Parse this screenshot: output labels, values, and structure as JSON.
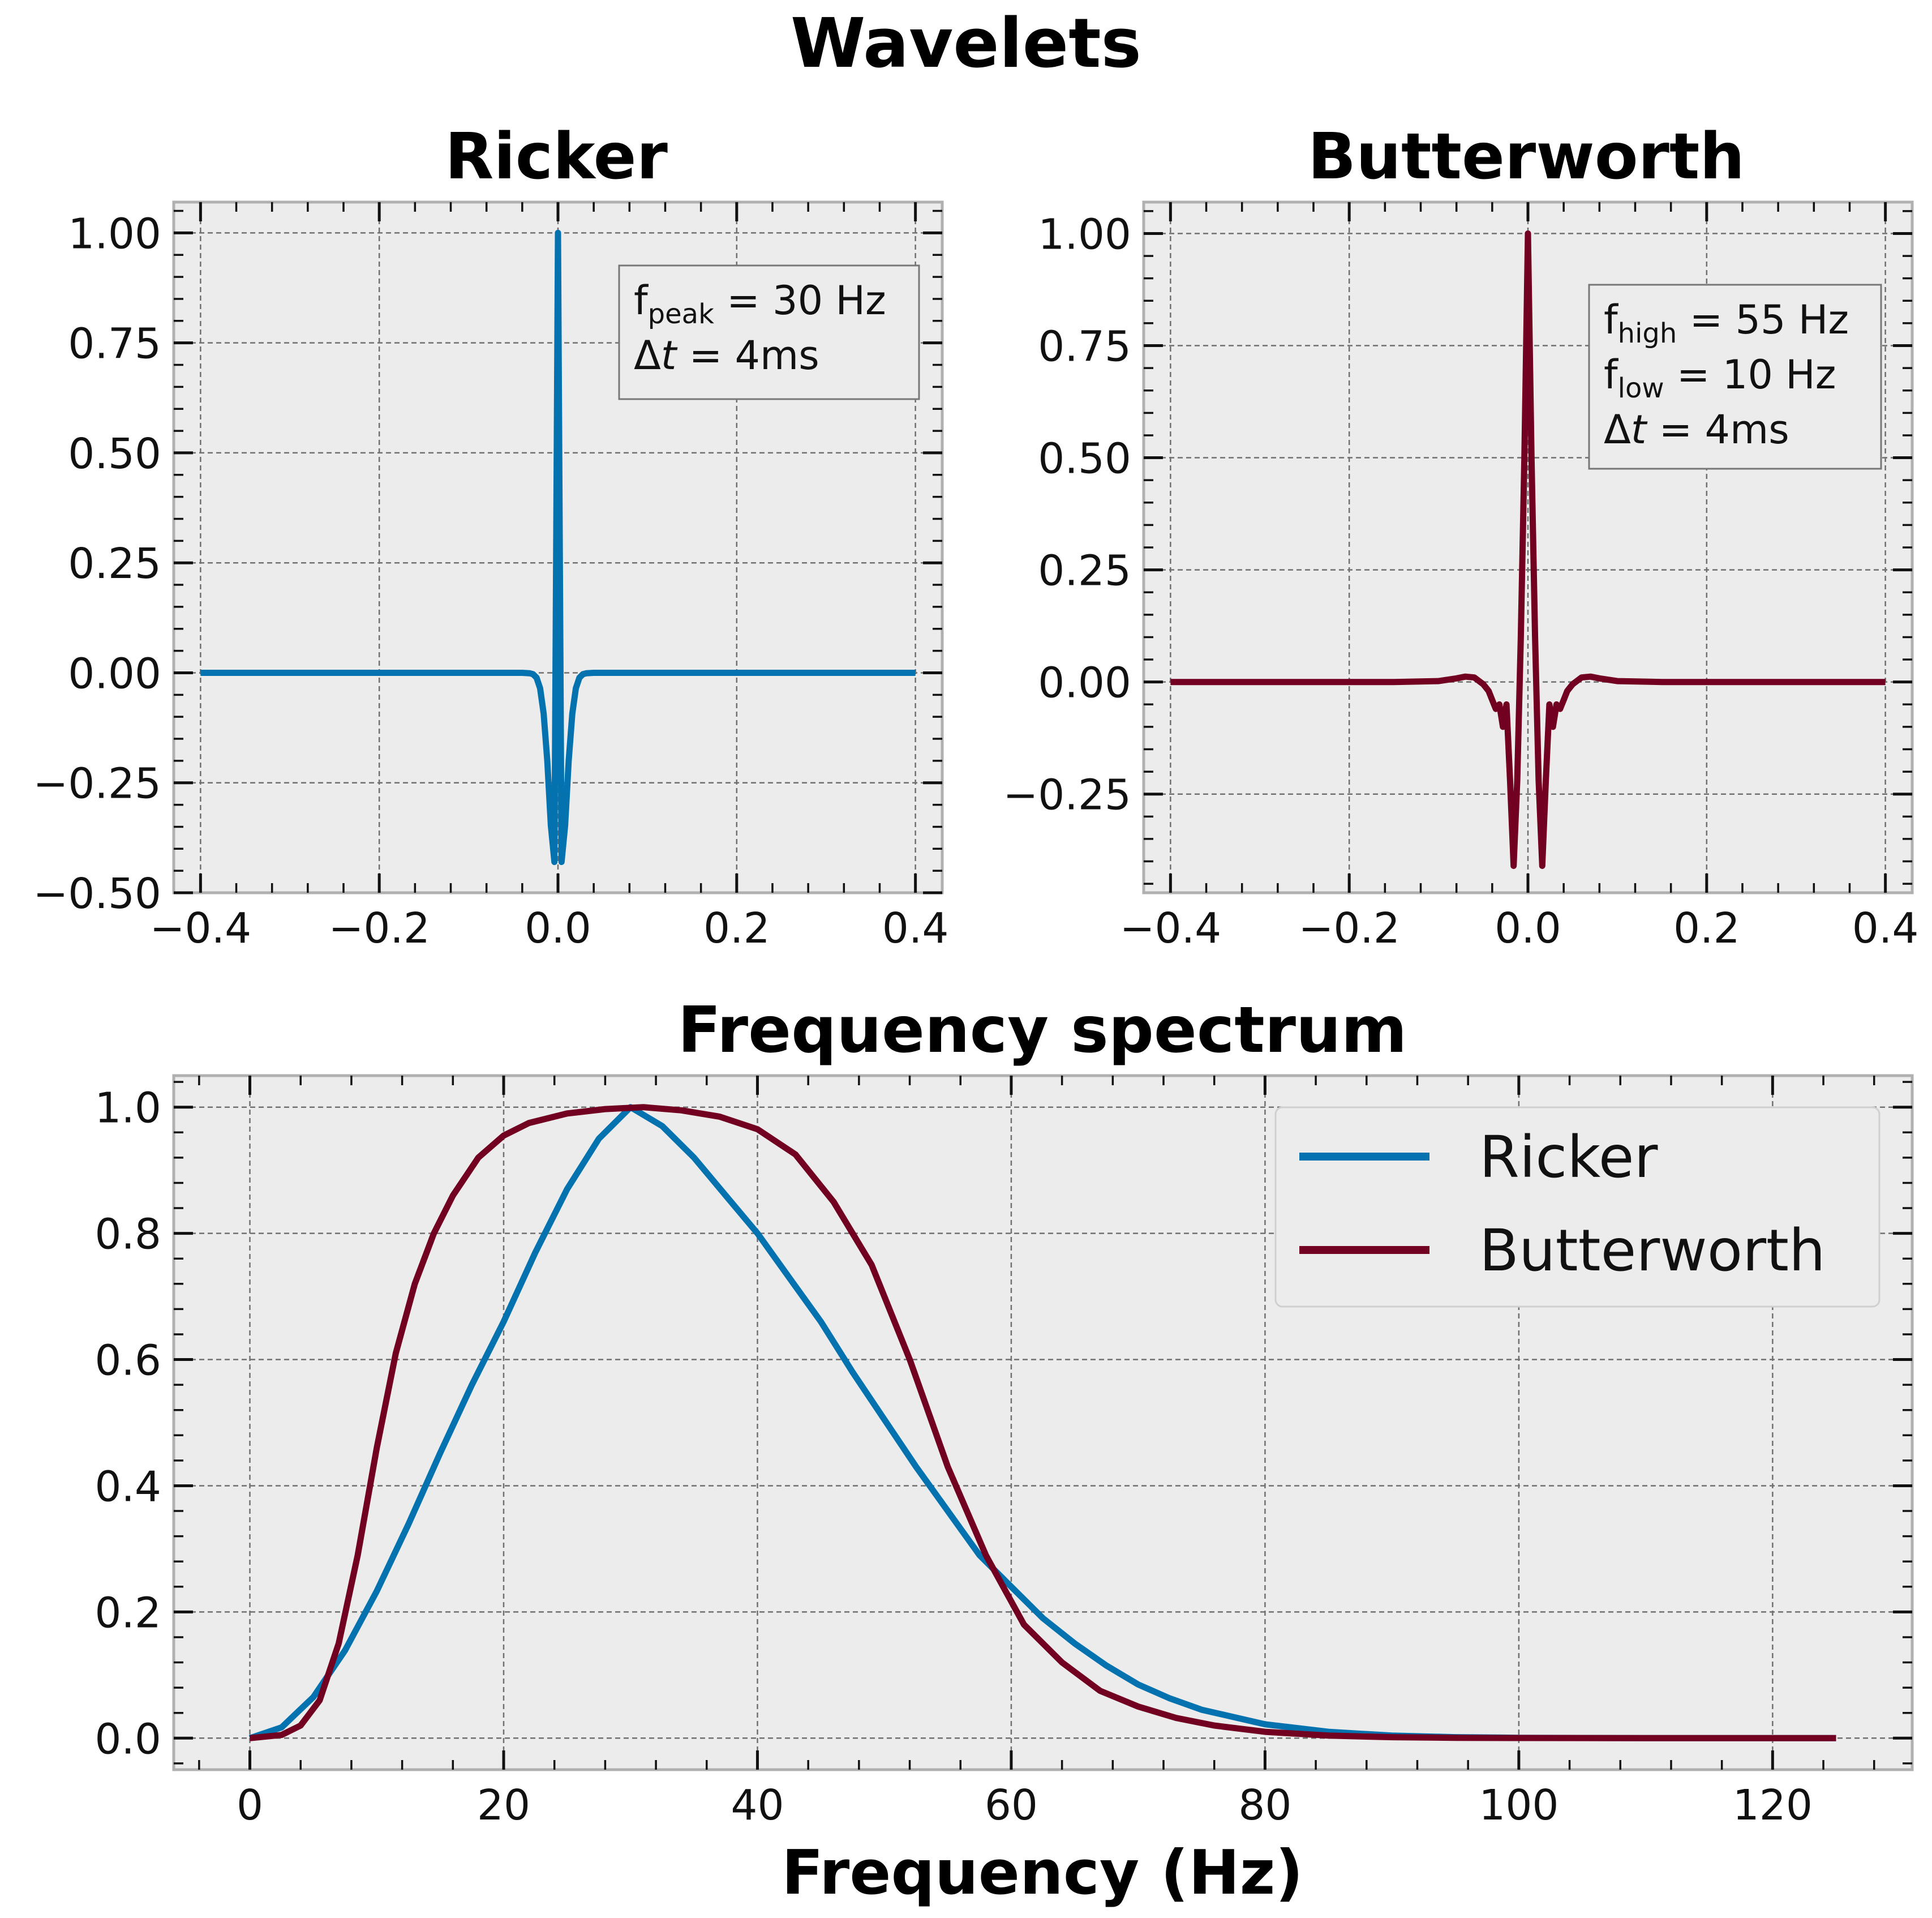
{
  "figure": {
    "title": "Wavelets"
  },
  "colors": {
    "ricker": "#0572b0",
    "butterworth": "#720020",
    "axes_bg": "#ececec",
    "axes_edge": "#b0b0b0",
    "grid": "#707070"
  },
  "chart_data": [
    {
      "id": "ricker",
      "type": "line",
      "title": "Ricker",
      "xlabel": "",
      "ylabel": "",
      "xlim": [
        -0.43,
        0.43
      ],
      "ylim": [
        -0.5,
        1.07
      ],
      "xticks": [
        -0.4,
        -0.2,
        0.0,
        0.2,
        0.4
      ],
      "xticklabels": [
        "−0.4",
        "−0.2",
        "0.0",
        "0.2",
        "0.4"
      ],
      "yticks": [
        -0.5,
        -0.25,
        0.0,
        0.25,
        0.5,
        0.75,
        1.0
      ],
      "yticklabels": [
        "−0.50",
        "−0.25",
        "0.00",
        "0.25",
        "0.50",
        "0.75",
        "1.00"
      ],
      "grid": true,
      "annotation": {
        "lines": [
          {
            "base": "f",
            "sub": "peak",
            "rest": " = 30 Hz"
          },
          {
            "base": "Δ",
            "italic": "t",
            "rest": " = 4ms"
          }
        ]
      },
      "series": [
        {
          "color": "#0572b0",
          "x": [
            -0.4,
            -0.1,
            -0.04,
            -0.032,
            -0.028,
            -0.024,
            -0.02,
            -0.016,
            -0.012,
            -0.008,
            -0.004,
            0.0,
            0.004,
            0.008,
            0.012,
            0.016,
            0.02,
            0.024,
            0.028,
            0.032,
            0.04,
            0.1,
            0.4
          ],
          "y": [
            0.0,
            0.0,
            0.0,
            -0.001,
            -0.003,
            -0.011,
            -0.035,
            -0.093,
            -0.2,
            -0.347,
            -0.43,
            1.0,
            -0.43,
            -0.347,
            -0.2,
            -0.093,
            -0.035,
            -0.011,
            -0.003,
            -0.001,
            0.0,
            0.0,
            0.0
          ]
        }
      ]
    },
    {
      "id": "butterworth",
      "type": "line",
      "title": "Butterworth",
      "xlabel": "",
      "ylabel": "",
      "xlim": [
        -0.43,
        0.43
      ],
      "ylim": [
        -0.47,
        1.07
      ],
      "xticks": [
        -0.4,
        -0.2,
        0.0,
        0.2,
        0.4
      ],
      "xticklabels": [
        "−0.4",
        "−0.2",
        "0.0",
        "0.2",
        "0.4"
      ],
      "yticks": [
        -0.25,
        0.0,
        0.25,
        0.5,
        0.75,
        1.0
      ],
      "yticklabels": [
        "−0.25",
        "0.00",
        "0.25",
        "0.50",
        "0.75",
        "1.00"
      ],
      "grid": true,
      "annotation": {
        "lines": [
          {
            "base": "f",
            "sub": "high",
            "rest": " = 55 Hz"
          },
          {
            "base": "f",
            "sub": "low",
            "rest": " = 10 Hz"
          },
          {
            "base": "Δ",
            "italic": "t",
            "rest": " = 4ms"
          }
        ]
      },
      "series": [
        {
          "color": "#720020",
          "x": [
            -0.4,
            -0.15,
            -0.1,
            -0.08,
            -0.07,
            -0.06,
            -0.05,
            -0.044,
            -0.04,
            -0.036,
            -0.032,
            -0.028,
            -0.024,
            -0.02,
            -0.016,
            -0.012,
            -0.008,
            -0.004,
            0.0,
            0.004,
            0.008,
            0.012,
            0.016,
            0.02,
            0.024,
            0.028,
            0.032,
            0.036,
            0.04,
            0.044,
            0.05,
            0.06,
            0.07,
            0.08,
            0.1,
            0.15,
            0.4
          ],
          "y": [
            0.0,
            0.0,
            0.002,
            0.008,
            0.012,
            0.01,
            -0.005,
            -0.02,
            -0.04,
            -0.06,
            -0.05,
            -0.1,
            -0.05,
            -0.22,
            -0.41,
            -0.22,
            0.1,
            0.5,
            1.0,
            0.5,
            0.1,
            -0.22,
            -0.41,
            -0.22,
            -0.05,
            -0.1,
            -0.05,
            -0.06,
            -0.04,
            -0.02,
            -0.005,
            0.01,
            0.012,
            0.008,
            0.002,
            0.0,
            0.0
          ]
        }
      ]
    },
    {
      "id": "spectrum",
      "type": "line",
      "title": "Frequency spectrum",
      "xlabel": "Frequency (Hz)",
      "ylabel": "",
      "xlim": [
        -6,
        131
      ],
      "ylim": [
        -0.05,
        1.05
      ],
      "xticks": [
        0,
        20,
        40,
        60,
        80,
        100,
        120
      ],
      "xticklabels": [
        "0",
        "20",
        "40",
        "60",
        "80",
        "100",
        "120"
      ],
      "yticks": [
        0.0,
        0.2,
        0.4,
        0.6,
        0.8,
        1.0
      ],
      "yticklabels": [
        "0.0",
        "0.2",
        "0.4",
        "0.6",
        "0.8",
        "1.0"
      ],
      "grid": true,
      "legend": {
        "position": "upper right"
      },
      "series": [
        {
          "name": "Ricker",
          "color": "#0572b0",
          "x": [
            0,
            2.5,
            5,
            7.5,
            10,
            12.5,
            15,
            17.5,
            20,
            22.5,
            25,
            27.5,
            30,
            32.5,
            35,
            37.5,
            40,
            42.5,
            45,
            47.5,
            50,
            52.5,
            55,
            57.5,
            60,
            62.5,
            65,
            67.5,
            70,
            72.5,
            75,
            80,
            85,
            90,
            95,
            100,
            110,
            125
          ],
          "y": [
            0.0,
            0.017,
            0.065,
            0.139,
            0.233,
            0.339,
            0.452,
            0.56,
            0.66,
            0.77,
            0.87,
            0.95,
            1.0,
            0.97,
            0.92,
            0.86,
            0.8,
            0.73,
            0.66,
            0.58,
            0.505,
            0.43,
            0.36,
            0.29,
            0.24,
            0.19,
            0.15,
            0.115,
            0.085,
            0.063,
            0.045,
            0.022,
            0.01,
            0.004,
            0.0015,
            0.0005,
            0.0001,
            0.0
          ]
        },
        {
          "name": "Butterworth",
          "color": "#720020",
          "x": [
            0,
            2.5,
            4,
            5.5,
            7,
            8.5,
            10,
            11.5,
            13,
            14.5,
            16,
            18,
            20,
            22,
            25,
            28,
            31,
            34,
            37,
            40,
            43,
            46,
            49,
            52,
            55,
            58,
            61,
            64,
            67,
            70,
            73,
            76,
            80,
            85,
            90,
            95,
            100,
            110,
            125
          ],
          "y": [
            0.0,
            0.005,
            0.02,
            0.06,
            0.15,
            0.29,
            0.46,
            0.61,
            0.72,
            0.8,
            0.86,
            0.92,
            0.955,
            0.975,
            0.99,
            0.997,
            1.0,
            0.995,
            0.985,
            0.965,
            0.925,
            0.85,
            0.75,
            0.6,
            0.43,
            0.29,
            0.18,
            0.12,
            0.075,
            0.05,
            0.032,
            0.02,
            0.01,
            0.004,
            0.0015,
            0.0005,
            0.0002,
            0.0,
            0.0
          ]
        }
      ]
    }
  ]
}
